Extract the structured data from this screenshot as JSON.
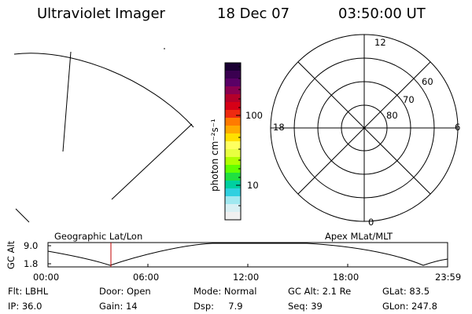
{
  "header": {
    "instrument": "Ultraviolet Imager",
    "date": "18 Dec 07",
    "time": "03:50:00 UT"
  },
  "colorbar": {
    "label": "photon cm⁻²s⁻¹",
    "tick_labels": [
      "100",
      "10"
    ],
    "colors": [
      "#1a0033",
      "#3a0050",
      "#5a0066",
      "#8a0050",
      "#b4002a",
      "#d60016",
      "#ee2a10",
      "#ff7a00",
      "#ffaa00",
      "#ffe000",
      "#ffff60",
      "#e8ff40",
      "#b0ff00",
      "#60ff00",
      "#20e040",
      "#00d0a0",
      "#30d0e0",
      "#a0e8f0",
      "#d8f0f4",
      "#f0f0f0"
    ]
  },
  "polar_plot": {
    "mlt_labels": [
      "12",
      "18",
      "6",
      "0"
    ],
    "lat_labels": [
      "60",
      "70",
      "80"
    ]
  },
  "timeline": {
    "left_title": "Geographic Lat/Lon",
    "right_title": "Apex MLat/MLT",
    "y_axis_label": "GC Alt",
    "y_ticks": [
      "9.0",
      "1.8"
    ],
    "x_ticks": [
      "00:00",
      "06:00",
      "12:00",
      "18:00",
      "23:59"
    ],
    "marker_color": "#c00000"
  },
  "info": {
    "row1": [
      "Flt: LBHL",
      "Door: Open",
      "Mode: Normal",
      "GC Alt: 2.1 Re",
      "GLat:  83.5"
    ],
    "row2": [
      "IP: 36.0",
      "Gain: 14",
      "Dsp:     7.9",
      "Seq: 39",
      "GLon: 247.8"
    ]
  }
}
